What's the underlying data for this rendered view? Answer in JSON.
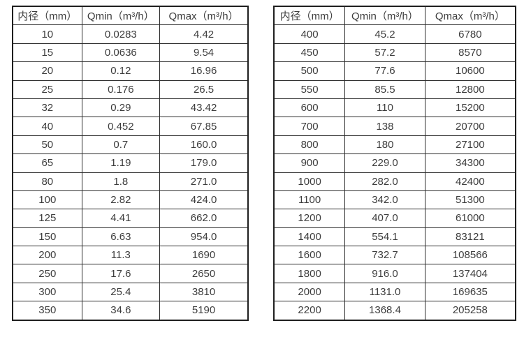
{
  "colors": {
    "background": "#ffffff",
    "text": "#3d3d3d",
    "border": "#2b2b2b",
    "outer_border": "#1f1f1f"
  },
  "tables": [
    {
      "name": "flow-spec-table-small-diameters",
      "headers": [
        "内径（mm）",
        "Qmin（m³/h）",
        "Qmax（m³/h）"
      ],
      "rows": [
        [
          "10",
          "0.0283",
          "4.42"
        ],
        [
          "15",
          "0.0636",
          "9.54"
        ],
        [
          "20",
          "0.12",
          "16.96"
        ],
        [
          "25",
          "0.176",
          "26.5"
        ],
        [
          "32",
          "0.29",
          "43.42"
        ],
        [
          "40",
          "0.452",
          "67.85"
        ],
        [
          "50",
          "0.7",
          "160.0"
        ],
        [
          "65",
          "1.19",
          "179.0"
        ],
        [
          "80",
          "1.8",
          "271.0"
        ],
        [
          "100",
          "2.82",
          "424.0"
        ],
        [
          "125",
          "4.41",
          "662.0"
        ],
        [
          "150",
          "6.63",
          "954.0"
        ],
        [
          "200",
          "11.3",
          "1690"
        ],
        [
          "250",
          "17.6",
          "2650"
        ],
        [
          "300",
          "25.4",
          "3810"
        ],
        [
          "350",
          "34.6",
          "5190"
        ]
      ]
    },
    {
      "name": "flow-spec-table-large-diameters",
      "headers": [
        "内径（mm）",
        "Qmin（m³/h）",
        "Qmax（m³/h）"
      ],
      "rows": [
        [
          "400",
          "45.2",
          "6780"
        ],
        [
          "450",
          "57.2",
          "8570"
        ],
        [
          "500",
          "77.6",
          "10600"
        ],
        [
          "550",
          "85.5",
          "12800"
        ],
        [
          "600",
          "110",
          "15200"
        ],
        [
          "700",
          "138",
          "20700"
        ],
        [
          "800",
          "180",
          "27100"
        ],
        [
          "900",
          "229.0",
          "34300"
        ],
        [
          "1000",
          "282.0",
          "42400"
        ],
        [
          "1100",
          "342.0",
          "51300"
        ],
        [
          "1200",
          "407.0",
          "61000"
        ],
        [
          "1400",
          "554.1",
          "83121"
        ],
        [
          "1600",
          "732.7",
          "108566"
        ],
        [
          "1800",
          "916.0",
          "137404"
        ],
        [
          "2000",
          "1131.0",
          "169635"
        ],
        [
          "2200",
          "1368.4",
          "205258"
        ]
      ]
    }
  ]
}
